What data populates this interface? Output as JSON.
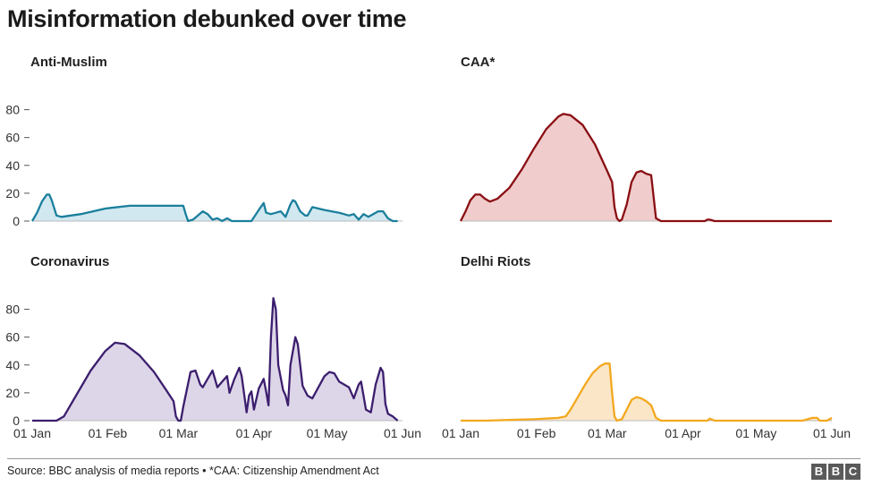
{
  "title": "Misinformation debunked over time",
  "source": "Source: BBC analysis of media reports • *CAA: Citizenship Amendment Act",
  "logo": [
    "B",
    "B",
    "C"
  ],
  "chart_data": [
    {
      "type": "area",
      "title": "Anti-Muslim",
      "color": "#1a7f9c",
      "fill": "#d2e8f0",
      "x_ticks": [
        "01 Jan",
        "01 Feb",
        "01 Mar",
        "01 Apr",
        "01 May",
        "01 Jun"
      ],
      "x_tick_days": [
        0,
        31,
        60,
        91,
        121,
        152
      ],
      "y_ticks": [
        0,
        20,
        40,
        60,
        80
      ],
      "ylim": [
        0,
        90
      ],
      "show_x_labels": false,
      "points": [
        [
          0,
          0
        ],
        [
          2,
          6
        ],
        [
          4,
          14
        ],
        [
          6,
          19
        ],
        [
          7,
          19
        ],
        [
          8,
          15
        ],
        [
          10,
          4
        ],
        [
          12,
          3
        ],
        [
          20,
          5
        ],
        [
          30,
          9
        ],
        [
          40,
          11
        ],
        [
          50,
          11
        ],
        [
          60,
          11
        ],
        [
          62,
          11
        ],
        [
          63,
          5
        ],
        [
          64,
          0
        ],
        [
          66,
          1
        ],
        [
          70,
          7
        ],
        [
          72,
          5
        ],
        [
          74,
          1
        ],
        [
          76,
          2
        ],
        [
          78,
          0
        ],
        [
          80,
          2
        ],
        [
          82,
          0
        ],
        [
          90,
          0
        ],
        [
          93,
          8
        ],
        [
          95,
          13
        ],
        [
          96,
          6
        ],
        [
          98,
          5
        ],
        [
          100,
          6
        ],
        [
          102,
          7
        ],
        [
          104,
          3
        ],
        [
          106,
          12
        ],
        [
          107,
          15
        ],
        [
          108,
          14
        ],
        [
          110,
          7
        ],
        [
          112,
          4
        ],
        [
          113,
          4
        ],
        [
          115,
          10
        ],
        [
          120,
          8
        ],
        [
          126,
          6
        ],
        [
          130,
          4
        ],
        [
          132,
          5
        ],
        [
          134,
          1
        ],
        [
          136,
          5
        ],
        [
          138,
          3
        ],
        [
          142,
          7
        ],
        [
          144,
          7
        ],
        [
          146,
          2
        ],
        [
          148,
          0
        ],
        [
          150,
          0
        ]
      ]
    },
    {
      "type": "area",
      "title": "CAA*",
      "color": "#8a0e12",
      "fill": "#f0cccc",
      "x_ticks": [
        "01 Jan",
        "01 Feb",
        "01 Mar",
        "01 Apr",
        "01 May",
        "01 Jun"
      ],
      "x_tick_days": [
        0,
        31,
        60,
        91,
        121,
        152
      ],
      "y_ticks": [
        0,
        20,
        40,
        60,
        80
      ],
      "ylim": [
        0,
        90
      ],
      "show_x_labels": false,
      "points": [
        [
          0,
          0
        ],
        [
          2,
          7
        ],
        [
          4,
          15
        ],
        [
          6,
          19
        ],
        [
          8,
          19
        ],
        [
          10,
          16
        ],
        [
          12,
          14
        ],
        [
          15,
          16
        ],
        [
          20,
          24
        ],
        [
          25,
          37
        ],
        [
          30,
          52
        ],
        [
          35,
          66
        ],
        [
          40,
          75
        ],
        [
          42,
          77
        ],
        [
          45,
          76
        ],
        [
          50,
          69
        ],
        [
          55,
          55
        ],
        [
          60,
          36
        ],
        [
          62,
          28
        ],
        [
          63,
          10
        ],
        [
          64,
          2
        ],
        [
          65,
          0
        ],
        [
          66,
          1
        ],
        [
          68,
          12
        ],
        [
          70,
          28
        ],
        [
          72,
          35
        ],
        [
          74,
          36
        ],
        [
          76,
          34
        ],
        [
          78,
          33
        ],
        [
          80,
          2
        ],
        [
          82,
          0
        ],
        [
          85,
          0
        ],
        [
          100,
          0
        ],
        [
          101,
          1
        ],
        [
          102,
          1
        ],
        [
          104,
          0
        ],
        [
          130,
          0
        ],
        [
          152,
          0
        ]
      ]
    },
    {
      "type": "area",
      "title": "Coronavirus",
      "color": "#3c1e6e",
      "fill": "#ddd6e8",
      "x_ticks": [
        "01 Jan",
        "01 Feb",
        "01 Mar",
        "01 Apr",
        "01 May",
        "01 Jun"
      ],
      "x_tick_days": [
        0,
        31,
        60,
        91,
        121,
        152
      ],
      "y_ticks": [
        0,
        20,
        40,
        60,
        80
      ],
      "ylim": [
        0,
        90
      ],
      "show_x_labels": true,
      "points": [
        [
          0,
          0
        ],
        [
          5,
          0
        ],
        [
          10,
          0
        ],
        [
          13,
          3
        ],
        [
          18,
          18
        ],
        [
          24,
          36
        ],
        [
          30,
          50
        ],
        [
          34,
          56
        ],
        [
          38,
          55
        ],
        [
          44,
          47
        ],
        [
          50,
          35
        ],
        [
          55,
          22
        ],
        [
          58,
          14
        ],
        [
          59,
          3
        ],
        [
          60,
          0
        ],
        [
          61,
          0
        ],
        [
          62,
          10
        ],
        [
          65,
          35
        ],
        [
          67,
          36
        ],
        [
          69,
          26
        ],
        [
          70,
          24
        ],
        [
          72,
          30
        ],
        [
          74,
          36
        ],
        [
          75,
          30
        ],
        [
          76,
          24
        ],
        [
          78,
          28
        ],
        [
          80,
          32
        ],
        [
          81,
          20
        ],
        [
          83,
          30
        ],
        [
          85,
          38
        ],
        [
          86,
          32
        ],
        [
          88,
          6
        ],
        [
          89,
          18
        ],
        [
          90,
          21
        ],
        [
          91,
          8
        ],
        [
          93,
          23
        ],
        [
          95,
          30
        ],
        [
          96,
          21
        ],
        [
          97,
          11
        ],
        [
          98,
          60
        ],
        [
          99,
          88
        ],
        [
          100,
          80
        ],
        [
          101,
          40
        ],
        [
          103,
          22
        ],
        [
          104,
          18
        ],
        [
          105,
          11
        ],
        [
          106,
          40
        ],
        [
          108,
          60
        ],
        [
          109,
          55
        ],
        [
          111,
          25
        ],
        [
          113,
          18
        ],
        [
          115,
          16
        ],
        [
          120,
          32
        ],
        [
          122,
          35
        ],
        [
          124,
          34
        ],
        [
          126,
          28
        ],
        [
          130,
          24
        ],
        [
          132,
          16
        ],
        [
          134,
          26
        ],
        [
          135,
          28
        ],
        [
          137,
          8
        ],
        [
          139,
          6
        ],
        [
          141,
          26
        ],
        [
          143,
          38
        ],
        [
          144,
          35
        ],
        [
          145,
          12
        ],
        [
          146,
          5
        ],
        [
          148,
          3
        ],
        [
          150,
          0
        ]
      ]
    },
    {
      "type": "area",
      "title": "Delhi Riots",
      "color": "#f3a81e",
      "fill": "#fbe7c8",
      "x_ticks": [
        "01 Jan",
        "01 Feb",
        "01 Mar",
        "01 Apr",
        "01 May",
        "01 Jun"
      ],
      "x_tick_days": [
        0,
        31,
        60,
        91,
        121,
        152
      ],
      "y_ticks": [
        0,
        20,
        40,
        60,
        80
      ],
      "ylim": [
        0,
        90
      ],
      "show_x_labels": true,
      "points": [
        [
          0,
          0
        ],
        [
          10,
          0
        ],
        [
          20,
          0.5
        ],
        [
          30,
          1
        ],
        [
          40,
          2
        ],
        [
          43,
          3
        ],
        [
          45,
          8
        ],
        [
          48,
          17
        ],
        [
          51,
          26
        ],
        [
          54,
          34
        ],
        [
          57,
          39
        ],
        [
          59,
          41
        ],
        [
          61,
          41
        ],
        [
          62,
          20
        ],
        [
          63,
          3
        ],
        [
          64,
          0
        ],
        [
          66,
          1
        ],
        [
          68,
          8
        ],
        [
          70,
          15
        ],
        [
          72,
          17
        ],
        [
          74,
          16
        ],
        [
          76,
          14
        ],
        [
          78,
          11
        ],
        [
          80,
          2
        ],
        [
          82,
          0
        ],
        [
          95,
          0
        ],
        [
          101,
          0
        ],
        [
          102,
          1.5
        ],
        [
          104,
          0
        ],
        [
          140,
          0
        ],
        [
          144,
          2
        ],
        [
          146,
          2
        ],
        [
          147,
          0
        ],
        [
          150,
          0
        ],
        [
          152,
          2
        ]
      ]
    }
  ]
}
